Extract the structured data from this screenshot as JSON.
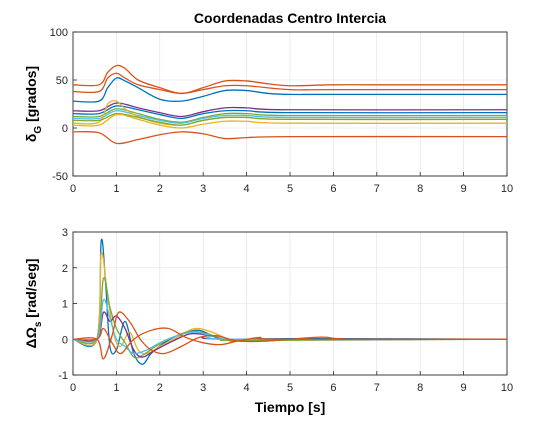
{
  "chart_data": [
    {
      "type": "line",
      "title": "Coordenadas Centro Intercia",
      "xlabel": "",
      "ylabel": "δ_G [grados]",
      "ylabel_main": "δ",
      "ylabel_sub": "G",
      "ylabel_rest": " [grados]",
      "xlim": [
        0,
        10
      ],
      "ylim": [
        -50,
        100
      ],
      "xticks": [
        "0",
        "1",
        "2",
        "3",
        "4",
        "5",
        "6",
        "7",
        "8",
        "9",
        "10"
      ],
      "yticks": [
        "-50",
        "0",
        "50",
        "100"
      ],
      "grid": true,
      "series": [
        {
          "color": "#D95319",
          "points": [
            [
              0,
              45
            ],
            [
              0.6,
              45
            ],
            [
              0.8,
              58
            ],
            [
              1.0,
              65
            ],
            [
              1.2,
              62
            ],
            [
              1.5,
              50
            ],
            [
              2.0,
              42
            ],
            [
              2.5,
              36
            ],
            [
              3.0,
              42
            ],
            [
              3.5,
              49
            ],
            [
              4.0,
              49
            ],
            [
              4.5,
              46
            ],
            [
              5.0,
              44
            ],
            [
              6.0,
              45
            ],
            [
              7.0,
              45
            ],
            [
              10,
              45
            ]
          ]
        },
        {
          "color": "#D95319",
          "points": [
            [
              0,
              38
            ],
            [
              0.6,
              38
            ],
            [
              0.8,
              52
            ],
            [
              1.0,
              57
            ],
            [
              1.2,
              52
            ],
            [
              1.5,
              45
            ],
            [
              2.0,
              40
            ],
            [
              2.5,
              36
            ],
            [
              3.0,
              40
            ],
            [
              3.5,
              44
            ],
            [
              4.0,
              44
            ],
            [
              5.0,
              40
            ],
            [
              6.0,
              40
            ],
            [
              10,
              40
            ]
          ]
        },
        {
          "color": "#0072BD",
          "points": [
            [
              0,
              28
            ],
            [
              0.6,
              28
            ],
            [
              0.8,
              42
            ],
            [
              1.0,
              52
            ],
            [
              1.2,
              49
            ],
            [
              1.5,
              42
            ],
            [
              2.0,
              30
            ],
            [
              2.5,
              28
            ],
            [
              3.0,
              33
            ],
            [
              3.5,
              39
            ],
            [
              4.0,
              39
            ],
            [
              4.5,
              36
            ],
            [
              5.0,
              35
            ],
            [
              6.0,
              35
            ],
            [
              10,
              35
            ]
          ]
        },
        {
          "color": "#7E2F8E",
          "points": [
            [
              0,
              18
            ],
            [
              0.6,
              18
            ],
            [
              1.0,
              26
            ],
            [
              1.5,
              21
            ],
            [
              2.0,
              16
            ],
            [
              2.5,
              12
            ],
            [
              3.0,
              17
            ],
            [
              3.5,
              21
            ],
            [
              4.0,
              21
            ],
            [
              5.0,
              19
            ],
            [
              10,
              19
            ]
          ]
        },
        {
          "color": "#0072BD",
          "points": [
            [
              0,
              15
            ],
            [
              0.6,
              15
            ],
            [
              1.0,
              23
            ],
            [
              1.5,
              19
            ],
            [
              2.0,
              14
            ],
            [
              2.5,
              10
            ],
            [
              3.0,
              15
            ],
            [
              3.5,
              18
            ],
            [
              4.0,
              18
            ],
            [
              5.0,
              16
            ],
            [
              10,
              16
            ]
          ]
        },
        {
          "color": "#77AC30",
          "points": [
            [
              0,
              12
            ],
            [
              0.6,
              12
            ],
            [
              1.0,
              20
            ],
            [
              1.5,
              15
            ],
            [
              2.0,
              9
            ],
            [
              2.5,
              6
            ],
            [
              3.0,
              11
            ],
            [
              3.5,
              15
            ],
            [
              4.0,
              15
            ],
            [
              5.0,
              13
            ],
            [
              10,
              13
            ]
          ]
        },
        {
          "color": "#4DBEEE",
          "points": [
            [
              0,
              10
            ],
            [
              0.6,
              10
            ],
            [
              1.0,
              18
            ],
            [
              1.5,
              13
            ],
            [
              2.0,
              8
            ],
            [
              2.5,
              5
            ],
            [
              3.0,
              10
            ],
            [
              3.5,
              13
            ],
            [
              4.0,
              13
            ],
            [
              5.0,
              11
            ],
            [
              10,
              11
            ]
          ]
        },
        {
          "color": "#EDB120",
          "points": [
            [
              0,
              5
            ],
            [
              0.6,
              6
            ],
            [
              0.8,
              25
            ],
            [
              1.0,
              28
            ],
            [
              1.2,
              20
            ],
            [
              1.5,
              12
            ],
            [
              2.0,
              5
            ],
            [
              2.5,
              3
            ],
            [
              3.0,
              8
            ],
            [
              3.5,
              11
            ],
            [
              4.0,
              11
            ],
            [
              5.0,
              9
            ],
            [
              10,
              9
            ]
          ]
        },
        {
          "color": "#77AC30",
          "points": [
            [
              0,
              8
            ],
            [
              0.6,
              8
            ],
            [
              1.0,
              15
            ],
            [
              1.5,
              11
            ],
            [
              2.0,
              6
            ],
            [
              2.5,
              3
            ],
            [
              3.0,
              8
            ],
            [
              3.5,
              11
            ],
            [
              4.0,
              11
            ],
            [
              5.0,
              9
            ],
            [
              10,
              9
            ]
          ]
        },
        {
          "color": "#EDB120",
          "points": [
            [
              0,
              3
            ],
            [
              0.6,
              3
            ],
            [
              1.0,
              14
            ],
            [
              1.5,
              9
            ],
            [
              2.0,
              3
            ],
            [
              2.5,
              0
            ],
            [
              3.0,
              4
            ],
            [
              3.5,
              7
            ],
            [
              4.0,
              7
            ],
            [
              5.0,
              5
            ],
            [
              10,
              5
            ]
          ]
        },
        {
          "color": "#D95319",
          "points": [
            [
              0,
              -4
            ],
            [
              0.6,
              -5
            ],
            [
              1.0,
              -16
            ],
            [
              1.5,
              -12
            ],
            [
              2.0,
              -7
            ],
            [
              2.5,
              -4
            ],
            [
              3.0,
              -6
            ],
            [
              3.5,
              -11
            ],
            [
              4.0,
              -10
            ],
            [
              5.0,
              -9
            ],
            [
              10,
              -9
            ]
          ]
        }
      ]
    },
    {
      "type": "line",
      "title": "",
      "xlabel": "Tiempo [s]",
      "ylabel": "ΔΩ_s [rad/seg]",
      "ylabel_main": "ΔΩ",
      "ylabel_sub": "s",
      "ylabel_rest": " [rad/seg]",
      "xlim": [
        0,
        10
      ],
      "ylim": [
        -1,
        3
      ],
      "xticks": [
        "0",
        "1",
        "2",
        "3",
        "4",
        "5",
        "6",
        "7",
        "8",
        "9",
        "10"
      ],
      "yticks": [
        "-1",
        "0",
        "1",
        "2",
        "3"
      ],
      "grid": true,
      "series": [
        {
          "color": "#0072BD",
          "points": [
            [
              0,
              0
            ],
            [
              0.55,
              0
            ],
            [
              0.65,
              2.75
            ],
            [
              0.75,
              1.6
            ],
            [
              0.85,
              -0.2
            ],
            [
              1.0,
              -0.3
            ],
            [
              1.2,
              0.5
            ],
            [
              1.4,
              -0.4
            ],
            [
              1.6,
              -0.7
            ],
            [
              1.8,
              -0.4
            ],
            [
              2.1,
              -0.1
            ],
            [
              2.5,
              0.15
            ],
            [
              2.9,
              0.25
            ],
            [
              3.3,
              0.05
            ],
            [
              3.7,
              -0.05
            ],
            [
              4.0,
              0
            ],
            [
              5.5,
              0.02
            ],
            [
              10,
              0
            ]
          ]
        },
        {
          "color": "#EDB120",
          "points": [
            [
              0,
              0
            ],
            [
              0.55,
              0
            ],
            [
              0.65,
              2.4
            ],
            [
              0.8,
              1.2
            ],
            [
              0.95,
              0.1
            ],
            [
              1.1,
              -0.2
            ],
            [
              1.3,
              0.2
            ],
            [
              1.5,
              -0.3
            ],
            [
              1.7,
              -0.4
            ],
            [
              2.0,
              -0.2
            ],
            [
              2.4,
              0.05
            ],
            [
              2.8,
              0.3
            ],
            [
              3.2,
              0.2
            ],
            [
              3.6,
              0
            ],
            [
              4.0,
              -0.05
            ],
            [
              6.0,
              0
            ],
            [
              10,
              0
            ]
          ]
        },
        {
          "color": "#77AC30",
          "points": [
            [
              0,
              0
            ],
            [
              0.55,
              0
            ],
            [
              0.7,
              1.7
            ],
            [
              0.85,
              0.9
            ],
            [
              1.0,
              0.3
            ],
            [
              1.2,
              -0.1
            ],
            [
              1.4,
              -0.5
            ],
            [
              1.6,
              -0.45
            ],
            [
              1.9,
              -0.2
            ],
            [
              2.3,
              0.05
            ],
            [
              2.7,
              0.22
            ],
            [
              3.1,
              0.15
            ],
            [
              3.5,
              0
            ],
            [
              4.0,
              -0.03
            ],
            [
              10,
              0
            ]
          ]
        },
        {
          "color": "#7E2F8E",
          "points": [
            [
              0,
              0
            ],
            [
              0.55,
              0
            ],
            [
              0.7,
              0.75
            ],
            [
              0.85,
              0.5
            ],
            [
              1.0,
              0.65
            ],
            [
              1.2,
              0.3
            ],
            [
              1.4,
              -0.3
            ],
            [
              1.6,
              -0.5
            ],
            [
              1.9,
              -0.3
            ],
            [
              2.3,
              -0.05
            ],
            [
              2.7,
              0.15
            ],
            [
              3.1,
              0.12
            ],
            [
              3.6,
              0
            ],
            [
              10,
              0
            ]
          ]
        },
        {
          "color": "#4DBEEE",
          "points": [
            [
              0,
              0
            ],
            [
              0.55,
              0
            ],
            [
              0.7,
              1.1
            ],
            [
              0.85,
              0.6
            ],
            [
              1.0,
              0
            ],
            [
              1.2,
              -0.2
            ],
            [
              1.4,
              -0.4
            ],
            [
              1.7,
              -0.3
            ],
            [
              2.0,
              -0.1
            ],
            [
              2.4,
              0.1
            ],
            [
              2.8,
              0.2
            ],
            [
              3.2,
              0.1
            ],
            [
              3.7,
              0
            ],
            [
              10,
              0
            ]
          ]
        },
        {
          "color": "#D95319",
          "points": [
            [
              0,
              0
            ],
            [
              0.55,
              0
            ],
            [
              0.7,
              -0.55
            ],
            [
              0.9,
              0.1
            ],
            [
              1.05,
              0.75
            ],
            [
              1.3,
              0.5
            ],
            [
              1.55,
              0
            ],
            [
              1.8,
              -0.3
            ],
            [
              2.1,
              -0.4
            ],
            [
              2.5,
              -0.2
            ],
            [
              2.9,
              0.05
            ],
            [
              3.3,
              0.1
            ],
            [
              3.8,
              -0.05
            ],
            [
              4.5,
              -0.05
            ],
            [
              5.7,
              0.06
            ],
            [
              6.5,
              0
            ],
            [
              10,
              0
            ]
          ]
        },
        {
          "color": "#D95319",
          "points": [
            [
              0,
              0
            ],
            [
              0.55,
              0
            ],
            [
              0.7,
              0.3
            ],
            [
              0.9,
              -0.1
            ],
            [
              1.1,
              -0.4
            ],
            [
              1.4,
              0
            ],
            [
              1.8,
              0.25
            ],
            [
              2.2,
              0.3
            ],
            [
              2.6,
              0.05
            ],
            [
              3.0,
              -0.1
            ],
            [
              3.4,
              -0.15
            ],
            [
              3.8,
              -0.05
            ],
            [
              4.3,
              0.05
            ],
            [
              4.8,
              0
            ],
            [
              10,
              0
            ]
          ]
        }
      ]
    }
  ]
}
